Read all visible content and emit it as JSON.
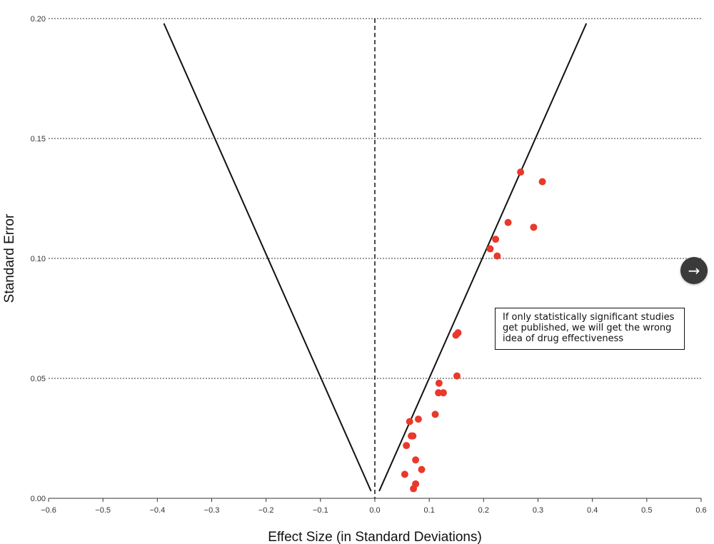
{
  "chart_data": {
    "type": "scatter",
    "title": "",
    "xlabel": "Effect Size (in Standard Deviations)",
    "ylabel": "Standard Error",
    "xlim": [
      -0.6,
      0.6
    ],
    "ylim": [
      0,
      0.2
    ],
    "x_ticks": [
      "−0.6",
      "−0.5",
      "−0.4",
      "−0.3",
      "−0.2",
      "−0.1",
      "0.0",
      "0.1",
      "0.2",
      "0.3",
      "0.4",
      "0.5",
      "0.6"
    ],
    "y_ticks": [
      "0.00",
      "0.05",
      "0.10",
      "0.15",
      "0.20"
    ],
    "grid": "horizontal-dotted",
    "reference_line_x": 0,
    "funnel": {
      "left": {
        "x": [
          -0.388,
          -0.007
        ],
        "y": [
          0.198,
          0.003
        ]
      },
      "right": {
        "x": [
          0.008,
          0.389
        ],
        "y": [
          0.003,
          0.198
        ]
      }
    },
    "point_color": "#e8392b",
    "points": [
      {
        "x": 0.268,
        "y": 0.136
      },
      {
        "x": 0.308,
        "y": 0.132
      },
      {
        "x": 0.245,
        "y": 0.115
      },
      {
        "x": 0.292,
        "y": 0.113
      },
      {
        "x": 0.222,
        "y": 0.108
      },
      {
        "x": 0.212,
        "y": 0.104
      },
      {
        "x": 0.225,
        "y": 0.101
      },
      {
        "x": 0.153,
        "y": 0.069
      },
      {
        "x": 0.149,
        "y": 0.068
      },
      {
        "x": 0.151,
        "y": 0.051
      },
      {
        "x": 0.118,
        "y": 0.048
      },
      {
        "x": 0.126,
        "y": 0.044
      },
      {
        "x": 0.117,
        "y": 0.044
      },
      {
        "x": 0.111,
        "y": 0.035
      },
      {
        "x": 0.08,
        "y": 0.033
      },
      {
        "x": 0.064,
        "y": 0.032
      },
      {
        "x": 0.07,
        "y": 0.026
      },
      {
        "x": 0.067,
        "y": 0.026
      },
      {
        "x": 0.058,
        "y": 0.022
      },
      {
        "x": 0.075,
        "y": 0.016
      },
      {
        "x": 0.086,
        "y": 0.012
      },
      {
        "x": 0.055,
        "y": 0.01
      },
      {
        "x": 0.075,
        "y": 0.006
      },
      {
        "x": 0.071,
        "y": 0.004
      }
    ],
    "annotation": "If only statistically significant studies get published, we will get the wrong idea of drug effectiveness"
  },
  "controls": {
    "next_icon": "arrow-right-icon",
    "next_glyph": "→"
  }
}
